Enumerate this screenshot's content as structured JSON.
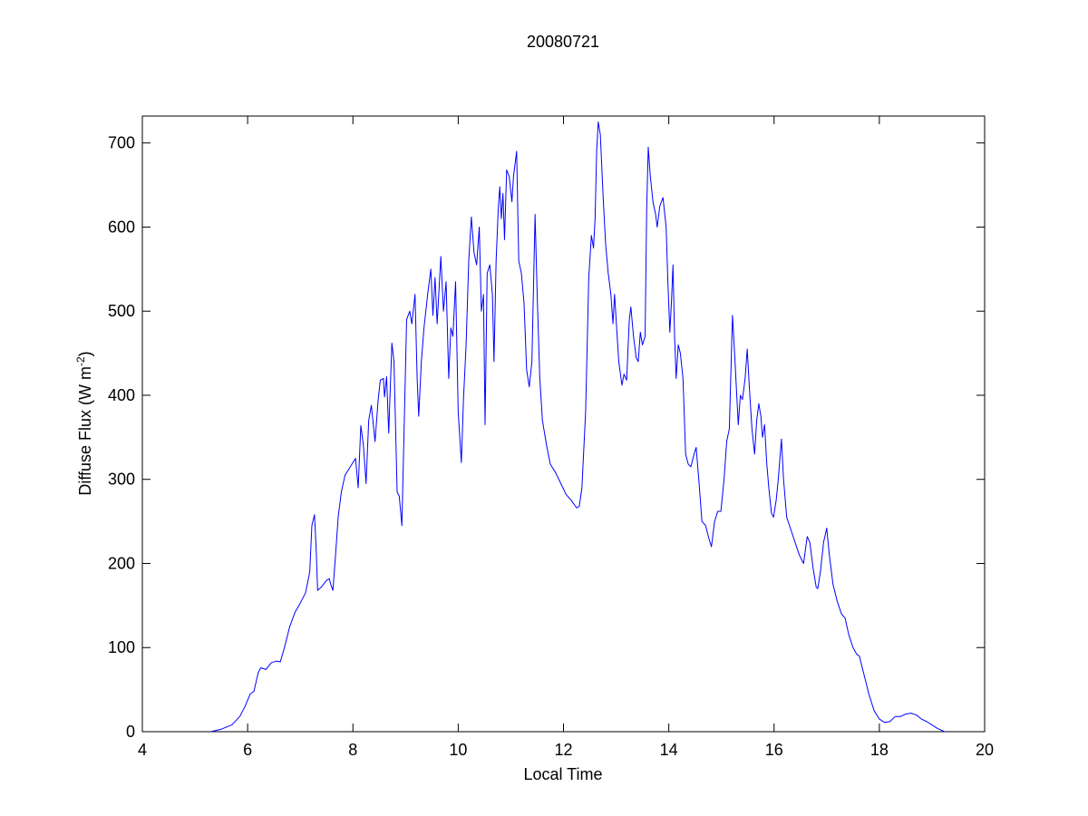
{
  "chart_data": {
    "type": "line",
    "title": "20080721",
    "xlabel": "Local Time",
    "ylabel_parts": [
      "Diffuse Flux (W m",
      "-2",
      ")"
    ],
    "xlim": [
      4,
      20
    ],
    "xticks": [
      4,
      6,
      8,
      10,
      12,
      14,
      16,
      18,
      20
    ],
    "ylim": [
      0,
      732
    ],
    "yticks": [
      0,
      100,
      200,
      300,
      400,
      500,
      600,
      700
    ],
    "grid": false,
    "x": [
      5.3,
      5.5,
      5.7,
      5.85,
      5.95,
      6.05,
      6.12,
      6.2,
      6.25,
      6.35,
      6.45,
      6.55,
      6.62,
      6.7,
      6.8,
      6.9,
      7.0,
      7.1,
      7.18,
      7.22,
      7.27,
      7.3,
      7.33,
      7.4,
      7.5,
      7.55,
      7.58,
      7.62,
      7.67,
      7.72,
      7.78,
      7.85,
      7.92,
      8.0,
      8.05,
      8.1,
      8.15,
      8.2,
      8.25,
      8.3,
      8.35,
      8.42,
      8.48,
      8.52,
      8.58,
      8.6,
      8.64,
      8.68,
      8.74,
      8.78,
      8.84,
      8.88,
      8.93,
      8.98,
      9.02,
      9.08,
      9.12,
      9.18,
      9.22,
      9.25,
      9.3,
      9.35,
      9.42,
      9.48,
      9.52,
      9.56,
      9.6,
      9.67,
      9.72,
      9.77,
      9.82,
      9.86,
      9.9,
      9.95,
      10.0,
      10.06,
      10.1,
      10.15,
      10.2,
      10.25,
      10.3,
      10.35,
      10.4,
      10.44,
      10.48,
      10.51,
      10.55,
      10.6,
      10.65,
      10.68,
      10.72,
      10.76,
      10.79,
      10.82,
      10.85,
      10.88,
      10.92,
      10.97,
      11.02,
      11.05,
      11.11,
      11.15,
      11.2,
      11.25,
      11.3,
      11.35,
      11.4,
      11.46,
      11.5,
      11.55,
      11.6,
      11.68,
      11.75,
      11.85,
      11.95,
      12.05,
      12.15,
      12.25,
      12.3,
      12.35,
      12.42,
      12.48,
      12.53,
      12.57,
      12.6,
      12.63,
      12.66,
      12.7,
      12.75,
      12.8,
      12.85,
      12.9,
      12.94,
      12.97,
      13.0,
      13.05,
      13.11,
      13.15,
      13.2,
      13.25,
      13.28,
      13.33,
      13.38,
      13.42,
      13.46,
      13.5,
      13.55,
      13.58,
      13.61,
      13.65,
      13.7,
      13.75,
      13.78,
      13.83,
      13.89,
      13.95,
      13.98,
      14.02,
      14.05,
      14.08,
      14.11,
      14.14,
      14.18,
      14.22,
      14.27,
      14.32,
      14.37,
      14.42,
      14.48,
      14.52,
      14.57,
      14.63,
      14.7,
      14.76,
      14.81,
      14.87,
      14.93,
      14.99,
      15.05,
      15.1,
      15.15,
      15.21,
      15.25,
      15.32,
      15.36,
      15.4,
      15.45,
      15.49,
      15.53,
      15.58,
      15.63,
      15.67,
      15.71,
      15.75,
      15.78,
      15.82,
      15.86,
      15.9,
      15.95,
      15.99,
      16.04,
      16.08,
      16.14,
      16.18,
      16.24,
      16.32,
      16.4,
      16.48,
      16.56,
      16.63,
      16.68,
      16.74,
      16.8,
      16.83,
      16.88,
      16.94,
      17.0,
      17.05,
      17.12,
      17.2,
      17.28,
      17.35,
      17.42,
      17.5,
      17.57,
      17.62,
      17.7,
      17.8,
      17.9,
      18.0,
      18.1,
      18.2,
      18.3,
      18.4,
      18.5,
      18.6,
      18.7,
      18.8,
      18.9,
      19.0,
      19.1,
      19.24
    ],
    "series": [
      {
        "color": "#0000ff",
        "values": [
          0,
          3,
          8,
          18,
          30,
          45,
          48,
          70,
          76,
          74,
          82,
          84,
          83,
          100,
          125,
          142,
          153,
          165,
          190,
          245,
          258,
          220,
          168,
          172,
          180,
          182,
          175,
          168,
          210,
          255,
          285,
          305,
          312,
          320,
          325,
          290,
          364,
          340,
          295,
          370,
          388,
          345,
          395,
          418,
          420,
          398,
          422,
          355,
          462,
          440,
          285,
          280,
          245,
          380,
          490,
          500,
          485,
          520,
          420,
          375,
          440,
          480,
          520,
          550,
          495,
          540,
          485,
          565,
          500,
          535,
          420,
          480,
          470,
          535,
          380,
          320,
          395,
          460,
          560,
          612,
          570,
          555,
          600,
          500,
          520,
          365,
          545,
          555,
          520,
          440,
          560,
          620,
          648,
          610,
          640,
          585,
          668,
          660,
          630,
          660,
          690,
          560,
          545,
          510,
          430,
          410,
          440,
          615,
          520,
          420,
          370,
          340,
          318,
          308,
          295,
          282,
          275,
          266,
          268,
          290,
          380,
          540,
          590,
          575,
          610,
          690,
          725,
          710,
          640,
          580,
          545,
          520,
          485,
          520,
          490,
          440,
          412,
          425,
          418,
          490,
          505,
          470,
          445,
          440,
          475,
          460,
          470,
          620,
          695,
          660,
          630,
          615,
          600,
          625,
          635,
          600,
          540,
          475,
          510,
          555,
          470,
          420,
          460,
          450,
          420,
          330,
          318,
          315,
          330,
          338,
          300,
          250,
          245,
          230,
          220,
          250,
          262,
          262,
          300,
          345,
          360,
          495,
          450,
          365,
          400,
          395,
          420,
          455,
          410,
          360,
          330,
          370,
          390,
          375,
          350,
          365,
          320,
          290,
          260,
          255,
          275,
          300,
          348,
          300,
          255,
          240,
          225,
          210,
          200,
          232,
          225,
          195,
          172,
          170,
          190,
          225,
          242,
          210,
          175,
          155,
          140,
          135,
          115,
          100,
          92,
          90,
          70,
          45,
          25,
          15,
          11,
          12,
          18,
          18,
          21,
          22,
          20,
          15,
          12,
          8,
          4,
          0
        ]
      }
    ]
  }
}
